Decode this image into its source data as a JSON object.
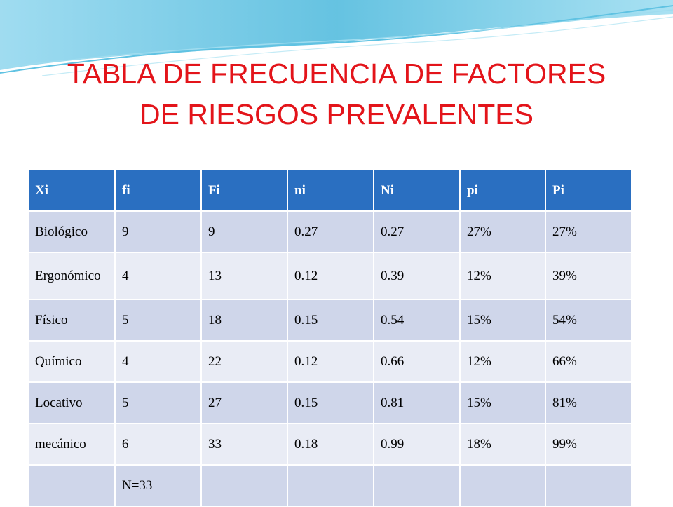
{
  "title_line1": "TABLA DE FRECUENCIA DE FACTORES",
  "title_line2": "DE RIESGOS PREVALENTES",
  "colors": {
    "title": "#e3141a",
    "header_bg": "#2a6fc1",
    "row_odd": "#cfd6ea",
    "row_even": "#e9ecf5",
    "wave": "#4ab8dc"
  },
  "table": {
    "headers": [
      "Xi",
      "fi",
      "Fi",
      "ni",
      "Ni",
      "pi",
      "Pi"
    ],
    "rows": [
      [
        "Biológico",
        "9",
        "9",
        "0.27",
        "0.27",
        "27%",
        "27%"
      ],
      [
        "Ergonómico",
        "4",
        "13",
        "0.12",
        "0.39",
        "12%",
        "39%"
      ],
      [
        "Físico",
        "5",
        "18",
        "0.15",
        "0.54",
        "15%",
        "54%"
      ],
      [
        "Químico",
        "4",
        "22",
        "0.12",
        "0.66",
        "12%",
        "66%"
      ],
      [
        "Locativo",
        "5",
        "27",
        "0.15",
        "0.81",
        "15%",
        "81%"
      ],
      [
        "mecánico",
        "6",
        "33",
        "0.18",
        "0.99",
        "18%",
        "99%"
      ]
    ],
    "total": [
      "",
      "N=33",
      "",
      "",
      "",
      "",
      ""
    ]
  }
}
